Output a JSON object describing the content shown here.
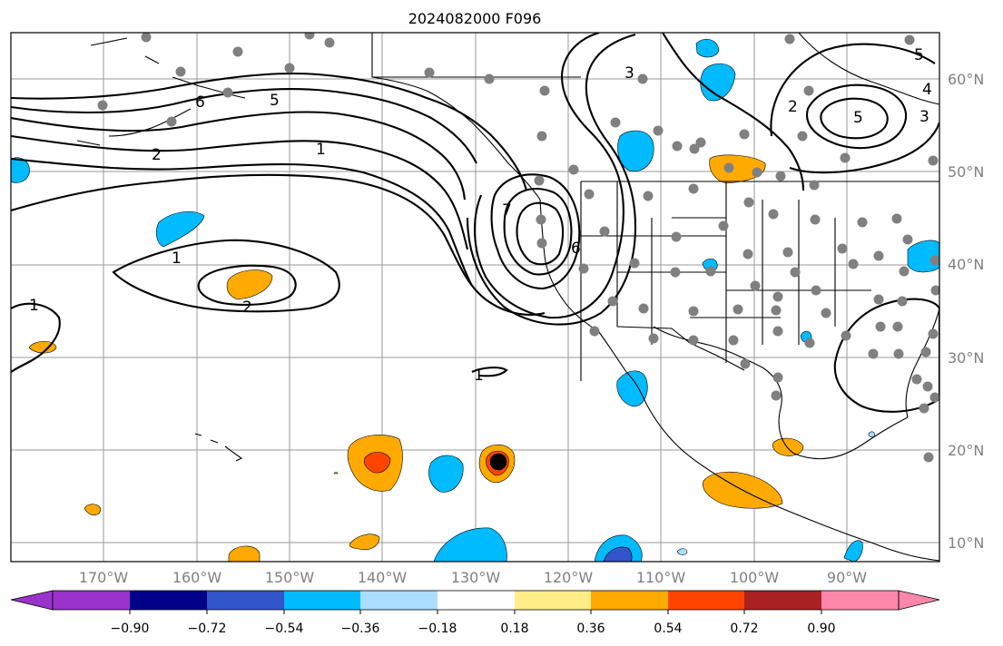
{
  "title": "2024082000 F096",
  "colors": {
    "neg_extreme": "#9933cc",
    "neg_090": "#000088",
    "neg_072": "#3355cc",
    "neg_054": "#00bbff",
    "neg_036": "#aaddff",
    "neutral": "#ffffff",
    "pos_018": "#ffee88",
    "pos_036": "#ffaa00",
    "pos_054": "#ff4400",
    "pos_072": "#aa2222",
    "pos_extreme": "#ff88aa",
    "station": "#808080",
    "contour": "#000000",
    "grid": "#9a9a9a"
  },
  "lat_labels": [
    "60°N",
    "50°N",
    "40°N",
    "30°N",
    "20°N",
    "10°N"
  ],
  "lon_labels": [
    "170°W",
    "160°W",
    "150°W",
    "140°W",
    "130°W",
    "120°W",
    "110°W",
    "100°W",
    "90°W"
  ],
  "colorbar": {
    "ticks": [
      "−0.90",
      "−0.72",
      "−0.54",
      "−0.36",
      "−0.18",
      "0.18",
      "0.36",
      "0.54",
      "0.72",
      "0.90"
    ]
  },
  "contour_labels": [
    "6",
    "5",
    "2",
    "1",
    "1",
    "2",
    "1",
    "6",
    "3",
    "7",
    "2",
    "5",
    "3",
    "4",
    "5",
    "1"
  ]
}
